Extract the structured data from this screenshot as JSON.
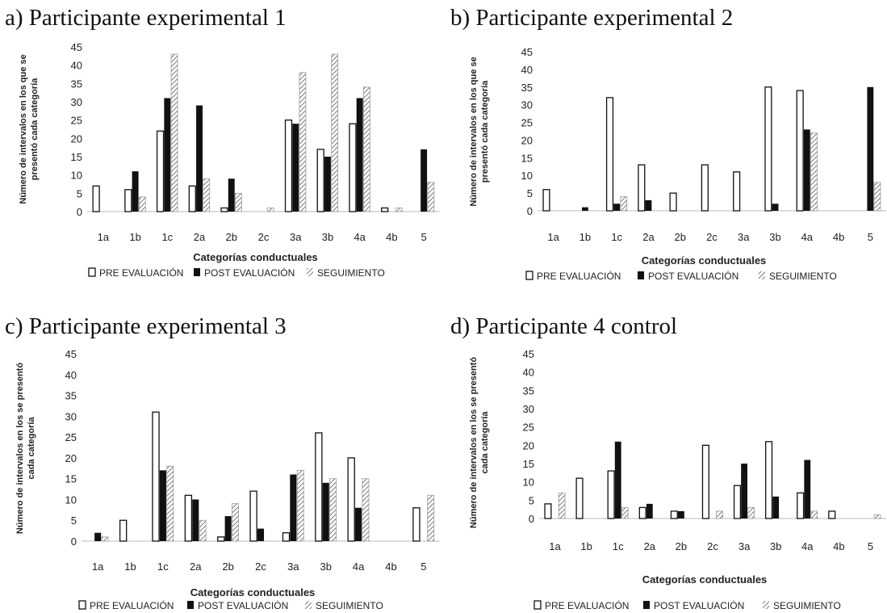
{
  "chart_data": [
    {
      "type": "bar",
      "title": "a) Participante  experimental 1",
      "ylabel": [
        "Número de intervalos en los que se",
        "presentó cada categoría"
      ],
      "xlabel": "Categorías conductuales",
      "categories": [
        "1a",
        "1b",
        "1c",
        "2a",
        "2b",
        "2c",
        "3a",
        "3b",
        "4a",
        "4b",
        "5"
      ],
      "ylim": [
        0,
        45
      ],
      "yticks": [
        0,
        5,
        10,
        15,
        20,
        25,
        30,
        35,
        40,
        45
      ],
      "series": [
        {
          "name": "PRE EVALUACIÓN",
          "values": [
            7,
            6,
            22,
            7,
            1,
            0,
            25,
            17,
            24,
            1,
            0
          ]
        },
        {
          "name": "POST EVALUACIÓN",
          "values": [
            0,
            11,
            31,
            29,
            9,
            0,
            24,
            15,
            31,
            0,
            17
          ]
        },
        {
          "name": "SEGUIMIENTO",
          "values": [
            0,
            4,
            43,
            9,
            5,
            1,
            38,
            43,
            34,
            1,
            8
          ]
        }
      ],
      "legend_position": "bottom"
    },
    {
      "type": "bar",
      "title": "b)  Participante experimental 2",
      "ylabel": [
        "Número de intervalos en los que se",
        "presentó cada categoría"
      ],
      "xlabel": "Categorías conductuales",
      "categories": [
        "1a",
        "1b",
        "1c",
        "2a",
        "2b",
        "2c",
        "3a",
        "3b",
        "4a",
        "4b",
        "5"
      ],
      "ylim": [
        0,
        45
      ],
      "yticks": [
        0,
        5,
        10,
        15,
        20,
        25,
        30,
        35,
        40,
        45
      ],
      "series": [
        {
          "name": "PRE EVALUACIÓN",
          "values": [
            6,
            0,
            32,
            13,
            5,
            13,
            11,
            35,
            34,
            0,
            0
          ]
        },
        {
          "name": "POST EVALUACIÓN",
          "values": [
            0,
            1,
            2,
            3,
            0,
            0,
            0,
            2,
            23,
            0,
            35
          ]
        },
        {
          "name": "SEGUIMIENTO",
          "values": [
            0,
            0,
            4,
            0,
            0,
            0,
            0,
            0,
            22,
            0,
            8
          ]
        }
      ],
      "legend_position": "bottom"
    },
    {
      "type": "bar",
      "title": "c) Participante experimental 3",
      "ylabel": [
        "Número de intervalos en los se presentó",
        "cada categoría"
      ],
      "xlabel": "Categorías conductuales",
      "categories": [
        "1a",
        "1b",
        "1c",
        "2a",
        "2b",
        "2c",
        "3a",
        "3b",
        "4a",
        "4b",
        "5"
      ],
      "ylim": [
        0,
        45
      ],
      "yticks": [
        0,
        5,
        10,
        15,
        20,
        25,
        30,
        35,
        40,
        45
      ],
      "series": [
        {
          "name": "PRE EVALUACIÓN",
          "values": [
            0,
            5,
            31,
            11,
            1,
            12,
            2,
            26,
            20,
            0,
            8
          ]
        },
        {
          "name": "POST EVALUACIÓN",
          "values": [
            2,
            0,
            17,
            10,
            6,
            3,
            16,
            14,
            8,
            0,
            0
          ]
        },
        {
          "name": "SEGUIMIENTO",
          "values": [
            1,
            0,
            18,
            5,
            9,
            0,
            17,
            15,
            15,
            0,
            11
          ]
        }
      ],
      "legend_position": "bottom"
    },
    {
      "type": "bar",
      "title": "d) Participante 4 control",
      "ylabel": [
        "Número de intervalos en los se presentó",
        "cada categoría"
      ],
      "xlabel": "Categorías conductuales",
      "categories": [
        "1a",
        "1b",
        "1c",
        "2a",
        "2b",
        "2c",
        "3a",
        "3b",
        "4a",
        "4b",
        "5"
      ],
      "ylim": [
        0,
        45
      ],
      "yticks": [
        0,
        5,
        10,
        15,
        20,
        25,
        30,
        35,
        40,
        45
      ],
      "series": [
        {
          "name": "PRE EVALUACIÓN",
          "values": [
            4,
            11,
            13,
            3,
            2,
            20,
            9,
            21,
            7,
            2,
            0
          ]
        },
        {
          "name": "POST EVALUACIÓN",
          "values": [
            0,
            0,
            21,
            4,
            2,
            0,
            15,
            6,
            16,
            0,
            0
          ]
        },
        {
          "name": "SEGUIMIENTO",
          "values": [
            7,
            0,
            3,
            0,
            0,
            2,
            3,
            0,
            2,
            0,
            1
          ]
        }
      ],
      "legend_position": "bottom"
    }
  ]
}
